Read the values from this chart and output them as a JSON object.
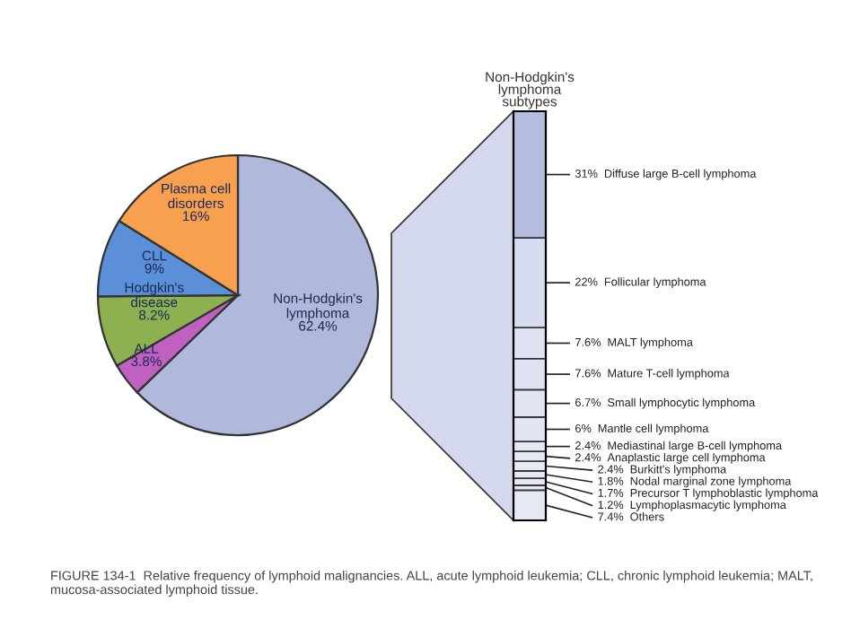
{
  "chart_data": [
    {
      "type": "pie",
      "categories": [
        "Non-Hodgkin's\nlymphoma",
        "ALL",
        "Hodgkin's\ndisease",
        "CLL",
        "Plasma cell\ndisorders"
      ],
      "values": [
        62.4,
        3.8,
        8.2,
        9,
        16
      ],
      "value_labels": [
        "62.4%",
        "3.8%",
        "8.2%",
        "9%",
        "16%"
      ],
      "colors": [
        "#b0b8dc",
        "#c060c0",
        "#8db050",
        "#5b8fd8",
        "#f7a050"
      ],
      "legend": false,
      "annotations": [
        "FIGURE 134-1  Relative frequency of lymphoid malignancies. ALL, acute lymphoid leukemia; CLL, chronic lymphoid leukemia; MALT, mucosa-associated lymphoid tissue."
      ]
    },
    {
      "type": "bar",
      "stacked": true,
      "title": "Non-Hodgkin's\nlymphoma\nsubtypes",
      "categories": [
        null
      ],
      "tick_labels": false,
      "legend": false,
      "series": [
        {
          "name": "Others",
          "color": "#e6e8f4",
          "values": [
            7.4
          ],
          "value_labels": [
            "7.4%"
          ]
        },
        {
          "name": "Lymphoplasmacytic lymphoma",
          "color": "#e6e8f4",
          "values": [
            1.2
          ],
          "value_labels": [
            "1.2%"
          ]
        },
        {
          "name": "Precursor T lymphoblastic lymphoma",
          "color": "#e6e8f4",
          "values": [
            1.7
          ],
          "value_labels": [
            "1.7%"
          ]
        },
        {
          "name": "Nodal marginal zone lymphoma",
          "color": "#e6e8f4",
          "values": [
            1.8
          ],
          "value_labels": [
            "1.8%"
          ]
        },
        {
          "name": "Burkitt's lymphoma",
          "color": "#e6e8f4",
          "values": [
            2.4
          ],
          "value_labels": [
            "2.4%"
          ]
        },
        {
          "name": "Anaplastic large cell lymphoma",
          "color": "#e6e8f4",
          "values": [
            2.4
          ],
          "value_labels": [
            "2.4%"
          ]
        },
        {
          "name": "Mediastinal large B-cell lymphoma",
          "color": "#e6e8f4",
          "values": [
            2.4
          ],
          "value_labels": [
            "2.4%"
          ]
        },
        {
          "name": "Mantle cell lymphoma",
          "color": "#e2e5f3",
          "values": [
            6
          ],
          "value_labels": [
            "6%"
          ]
        },
        {
          "name": "Small lymphocytic lymphoma",
          "color": "#e2e5f3",
          "values": [
            6.7
          ],
          "value_labels": [
            "6.7%"
          ]
        },
        {
          "name": "Mature T-cell lymphoma",
          "color": "#dfe2f2",
          "values": [
            7.6
          ],
          "value_labels": [
            "7.6%"
          ]
        },
        {
          "name": "MALT lymphoma",
          "color": "#dfe2f2",
          "values": [
            7.6
          ],
          "value_labels": [
            "7.6%"
          ]
        },
        {
          "name": "Follicular lymphoma",
          "color": "#d8dcf0",
          "values": [
            22
          ],
          "value_labels": [
            "22%"
          ]
        },
        {
          "name": "Diffuse large B-cell lymphoma",
          "color": "#b4bce0",
          "values": [
            31
          ],
          "value_labels": [
            "31%"
          ]
        }
      ]
    }
  ]
}
